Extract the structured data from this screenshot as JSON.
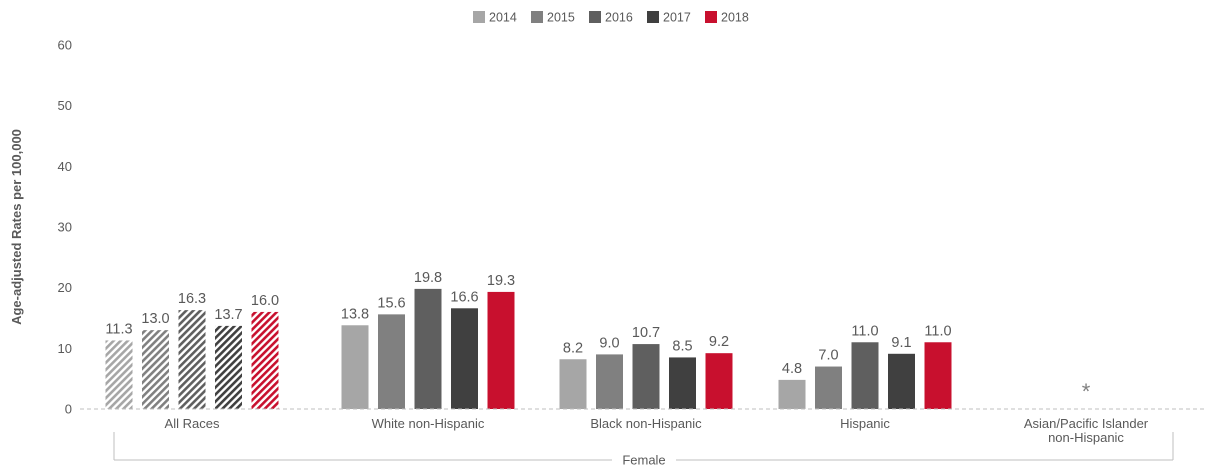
{
  "chart_data": {
    "type": "bar",
    "ylabel": "Age-adjusted Rates per 100,000",
    "xlabel": "",
    "group_label": "Female",
    "ylim": [
      0,
      60
    ],
    "yticks": [
      0,
      10,
      20,
      30,
      40,
      50,
      60
    ],
    "grid": false,
    "legend_position": "top-center",
    "categories": [
      "All Races",
      "White non-Hispanic",
      "Black non-Hispanic",
      "Hispanic",
      "Asian/Pacific Islander non-Hispanic"
    ],
    "category_lines": [
      [
        "All Races"
      ],
      [
        "White non-Hispanic"
      ],
      [
        "Black non-Hispanic"
      ],
      [
        "Hispanic"
      ],
      [
        "Asian/Pacific Islander",
        "non-Hispanic"
      ]
    ],
    "series": [
      {
        "name": "2014",
        "color": "#a6a6a6",
        "values": [
          11.3,
          13.8,
          8.2,
          4.8,
          null
        ]
      },
      {
        "name": "2015",
        "color": "#808080",
        "values": [
          13.0,
          15.6,
          9.0,
          7.0,
          null
        ]
      },
      {
        "name": "2016",
        "color": "#5f5f5f",
        "values": [
          16.3,
          19.8,
          10.7,
          11.0,
          null
        ]
      },
      {
        "name": "2017",
        "color": "#404040",
        "values": [
          13.7,
          16.6,
          8.5,
          9.1,
          null
        ]
      },
      {
        "name": "2018",
        "color": "#c8102e",
        "values": [
          16.0,
          19.3,
          9.2,
          11.0,
          null
        ]
      }
    ],
    "hatched_categories": [
      "All Races"
    ],
    "suppressed_marker": "*",
    "suppressed_categories": [
      "Asian/Pacific Islander non-Hispanic"
    ]
  }
}
